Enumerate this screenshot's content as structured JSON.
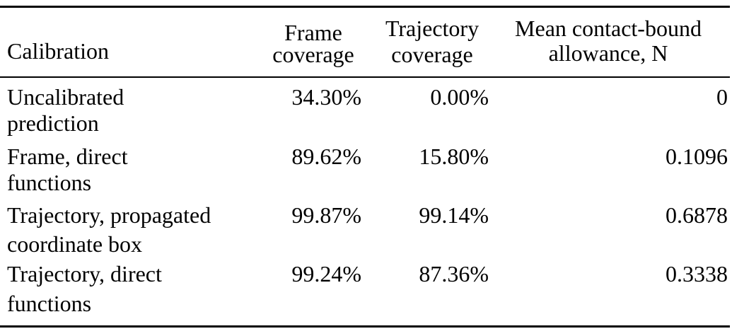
{
  "table": {
    "headers": {
      "calibration": "Calibration",
      "frame_line1": "Frame",
      "frame_line2": "coverage",
      "trajectory_line1": "Trajectory",
      "trajectory_line2": "coverage",
      "allowance_line1": "Mean contact-bound",
      "allowance_line2": "allowance, N"
    },
    "rows": [
      {
        "label_line1": "Uncalibrated",
        "label_line2": "prediction",
        "frame_coverage": "34.30%",
        "trajectory_coverage": "0.00%",
        "allowance": "0"
      },
      {
        "label_line1": "Frame, direct",
        "label_line2": "functions",
        "frame_coverage": "89.62%",
        "trajectory_coverage": "15.80%",
        "allowance": "0.1096"
      },
      {
        "label_line1": "Trajectory, propagated",
        "label_line2": "coordinate box",
        "frame_coverage": "99.87%",
        "trajectory_coverage": "99.14%",
        "allowance": "0.6878"
      },
      {
        "label_line1": "Trajectory, direct",
        "label_line2": "functions",
        "frame_coverage": "99.24%",
        "trajectory_coverage": "87.36%",
        "allowance": "0.3338"
      }
    ]
  }
}
